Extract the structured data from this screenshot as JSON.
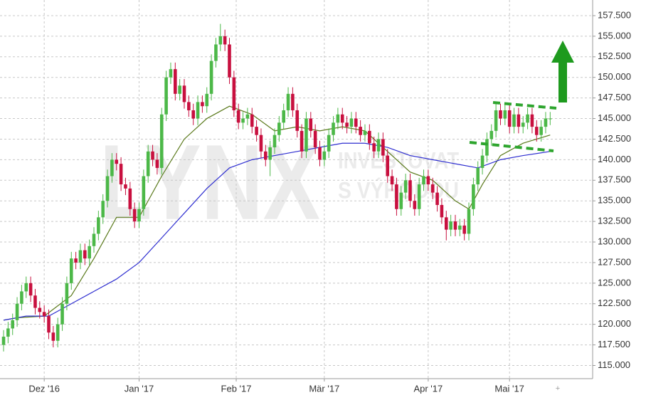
{
  "chart_data": {
    "type": "candlestick",
    "watermark": [
      "LYNX",
      "INVESTOVAT",
      "S VÝHODOU"
    ],
    "up_color": "#4cb848",
    "down_color": "#c8103f",
    "grid": true,
    "xlim": [
      -0.79,
      130.4
    ],
    "xticks": [
      {
        "value": 9,
        "label": "Dez '16"
      },
      {
        "value": 30,
        "label": "Jan '17"
      },
      {
        "value": 51.5,
        "label": "Feb '17"
      },
      {
        "value": 71,
        "label": "Mär '17"
      },
      {
        "value": 94,
        "label": "Apr '17"
      },
      {
        "value": 112,
        "label": "Mai '17"
      }
    ],
    "ylim": [
      113.4,
      159.4
    ],
    "yticks": [
      {
        "value": 115,
        "label": "115.000"
      },
      {
        "value": 117.5,
        "label": "117.500"
      },
      {
        "value": 120,
        "label": "120.000"
      },
      {
        "value": 122.5,
        "label": "122.500"
      },
      {
        "value": 125,
        "label": "125.000"
      },
      {
        "value": 127.5,
        "label": "127.500"
      },
      {
        "value": 130,
        "label": "130.000"
      },
      {
        "value": 132.5,
        "label": "132.500"
      },
      {
        "value": 135,
        "label": "135.000"
      },
      {
        "value": 137.5,
        "label": "137.500"
      },
      {
        "value": 140,
        "label": "140.000"
      },
      {
        "value": 142.5,
        "label": "142.500"
      },
      {
        "value": 145,
        "label": "145.000"
      },
      {
        "value": 147.5,
        "label": "147.500"
      },
      {
        "value": 150,
        "label": "150.000"
      },
      {
        "value": 152.5,
        "label": "152.500"
      },
      {
        "value": 155,
        "label": "155.000"
      },
      {
        "value": 157.5,
        "label": "157.500"
      }
    ],
    "open": [
      117.5,
      118.5,
      119.5,
      120.5,
      122.5,
      124.0,
      125.0,
      123.5,
      122.0,
      121.5,
      121.0,
      119.0,
      118.0,
      120.0,
      122.5,
      125.0,
      128.0,
      127.5,
      129.0,
      128.0,
      129.5,
      131.0,
      133.0,
      135.0,
      138.0,
      140.0,
      139.5,
      137.0,
      136.5,
      134.0,
      132.5,
      134.0,
      138.0,
      141.0,
      140.0,
      139.0,
      145.5,
      150.0,
      151.0,
      148.0,
      149.0,
      147.0,
      146.0,
      145.0,
      147.0,
      146.5,
      148.0,
      152.0,
      154.0,
      155.0,
      154.0,
      150.0,
      146.0,
      144.5,
      145.0,
      145.5,
      144.0,
      143.0,
      141.0,
      140.0,
      141.5,
      143.0,
      144.5,
      146.0,
      148.0,
      146.0,
      143.5,
      141.0,
      145.0,
      143.5,
      141.5,
      140.0,
      141.0,
      143.0,
      144.5,
      145.5,
      144.5,
      144.0,
      145.0,
      144.0,
      143.0,
      143.5,
      142.0,
      141.0,
      142.5,
      140.5,
      138.0,
      137.0,
      134.0,
      136.0,
      137.5,
      135.0,
      134.0,
      137.0,
      138.0,
      137.0,
      136.0,
      134.5,
      133.0,
      131.5,
      132.5,
      131.5,
      132.0,
      131.0,
      134.0,
      137.0,
      139.0,
      140.5,
      142.5,
      143.5,
      146.0,
      145.0,
      146.0,
      144.0,
      145.5,
      144.0,
      144.5,
      145.5,
      144.0,
      143.0,
      144.0,
      145.0
    ],
    "high": [
      119.3,
      120.3,
      121.3,
      123.3,
      124.8,
      125.8,
      125.8,
      124.3,
      122.8,
      122.3,
      121.8,
      119.8,
      120.8,
      123.3,
      125.8,
      128.8,
      128.8,
      129.8,
      129.8,
      130.3,
      131.8,
      133.8,
      135.8,
      138.8,
      140.8,
      140.8,
      140.3,
      137.8,
      137.3,
      134.8,
      134.8,
      138.8,
      141.8,
      141.8,
      140.8,
      146.3,
      150.8,
      151.8,
      151.8,
      149.8,
      149.8,
      147.8,
      146.8,
      147.8,
      147.8,
      148.8,
      152.8,
      154.8,
      156.5,
      155.8,
      154.8,
      150.8,
      146.8,
      145.8,
      146.3,
      146.3,
      144.8,
      143.8,
      141.8,
      142.3,
      143.8,
      145.3,
      146.8,
      148.8,
      148.8,
      146.8,
      144.3,
      145.8,
      145.8,
      144.3,
      142.3,
      141.8,
      143.8,
      145.3,
      146.3,
      146.3,
      145.3,
      145.8,
      145.8,
      144.8,
      144.3,
      144.3,
      142.8,
      143.3,
      143.3,
      141.3,
      138.8,
      137.8,
      136.8,
      138.3,
      138.3,
      135.8,
      137.8,
      138.8,
      138.8,
      137.8,
      136.8,
      135.3,
      133.8,
      133.3,
      133.3,
      132.8,
      132.8,
      134.8,
      137.8,
      139.8,
      141.3,
      143.3,
      144.3,
      146.8,
      146.8,
      146.8,
      146.8,
      146.3,
      146.3,
      145.3,
      146.3,
      146.3,
      144.8,
      144.8,
      145.8,
      145.8
    ],
    "low": [
      116.7,
      117.7,
      118.7,
      119.7,
      121.7,
      123.2,
      122.7,
      121.2,
      120.7,
      120.2,
      118.2,
      117.2,
      117.2,
      119.2,
      121.7,
      124.2,
      126.7,
      126.7,
      127.2,
      127.2,
      128.7,
      130.2,
      132.2,
      134.2,
      137.2,
      138.7,
      136.2,
      135.7,
      133.2,
      131.7,
      131.7,
      133.2,
      137.2,
      139.2,
      138.2,
      138.2,
      144.7,
      149.2,
      147.2,
      147.2,
      146.2,
      145.2,
      144.2,
      144.2,
      145.7,
      145.7,
      147.2,
      151.2,
      153.2,
      153.2,
      149.2,
      145.2,
      143.7,
      143.7,
      144.2,
      143.2,
      142.2,
      140.2,
      139.2,
      138.0,
      140.7,
      142.2,
      143.7,
      145.2,
      145.2,
      142.7,
      140.2,
      140.2,
      142.7,
      140.7,
      139.2,
      139.2,
      140.2,
      142.2,
      143.7,
      143.7,
      143.2,
      143.2,
      143.2,
      142.2,
      142.2,
      141.2,
      140.2,
      140.2,
      139.7,
      137.2,
      136.2,
      133.2,
      133.2,
      135.2,
      134.2,
      133.2,
      133.2,
      136.2,
      136.2,
      135.2,
      133.7,
      132.2,
      130.2,
      130.7,
      130.7,
      130.7,
      130.2,
      130.2,
      133.2,
      136.2,
      138.2,
      139.7,
      141.7,
      142.7,
      144.2,
      144.2,
      143.2,
      143.2,
      143.2,
      143.2,
      143.7,
      143.2,
      142.2,
      142.2,
      143.2,
      144.2
    ],
    "close": [
      118.5,
      119.5,
      120.5,
      122.5,
      124.0,
      125.0,
      123.5,
      122.0,
      121.5,
      121.0,
      119.0,
      118.0,
      120.0,
      122.5,
      125.0,
      128.0,
      127.5,
      129.0,
      128.0,
      129.5,
      131.0,
      133.0,
      135.0,
      138.0,
      140.0,
      139.5,
      137.0,
      136.5,
      134.0,
      132.5,
      134.0,
      138.0,
      141.0,
      140.0,
      139.0,
      145.5,
      150.0,
      151.0,
      148.0,
      149.0,
      147.0,
      146.0,
      145.0,
      147.0,
      146.5,
      148.0,
      152.0,
      154.0,
      155.0,
      154.0,
      150.0,
      146.0,
      144.5,
      145.0,
      145.5,
      144.0,
      143.0,
      141.0,
      140.0,
      141.5,
      143.0,
      144.5,
      146.0,
      148.0,
      146.0,
      143.5,
      141.0,
      145.0,
      143.5,
      141.5,
      140.0,
      141.0,
      143.0,
      144.5,
      145.5,
      144.5,
      144.0,
      145.0,
      144.0,
      143.0,
      143.5,
      142.0,
      141.0,
      142.5,
      140.5,
      138.0,
      137.0,
      134.0,
      136.0,
      137.5,
      135.0,
      134.0,
      137.0,
      138.0,
      137.0,
      136.0,
      134.5,
      133.0,
      131.5,
      132.5,
      131.5,
      132.0,
      131.0,
      134.0,
      137.0,
      139.0,
      140.5,
      142.5,
      143.5,
      146.0,
      145.0,
      146.0,
      144.0,
      145.5,
      144.0,
      144.5,
      145.5,
      144.0,
      143.0,
      144.0,
      145.0,
      145.0
    ],
    "lines": [
      {
        "color": "#5b7a1c",
        "x": [
          0,
          3,
          9,
          15,
          20,
          25,
          30,
          35,
          40,
          45,
          50,
          55,
          60,
          65,
          70,
          75,
          80,
          85,
          90,
          95,
          100,
          103,
          106,
          110,
          115,
          121
        ],
        "values": [
          120.5,
          120.8,
          121.0,
          123.5,
          128.0,
          133.0,
          133.0,
          138.0,
          142.5,
          145.0,
          146.5,
          145.5,
          143.5,
          144.0,
          143.5,
          144.0,
          143.5,
          141.0,
          138.5,
          137.5,
          135.0,
          134.0,
          137.0,
          140.5,
          142.0,
          143.0
        ]
      },
      {
        "color": "#2e2ed0",
        "x": [
          0,
          5,
          10,
          15,
          20,
          25,
          30,
          35,
          40,
          45,
          50,
          55,
          60,
          65,
          70,
          75,
          80,
          85,
          90,
          95,
          100,
          105,
          110,
          115,
          121
        ],
        "values": [
          120.5,
          121.0,
          121.0,
          122.5,
          124.0,
          125.5,
          127.5,
          130.5,
          133.5,
          136.5,
          139.0,
          140.0,
          140.5,
          141.0,
          141.5,
          142.0,
          142.0,
          141.5,
          140.5,
          140.0,
          139.5,
          139.0,
          140.0,
          140.5,
          141.0
        ]
      }
    ]
  }
}
